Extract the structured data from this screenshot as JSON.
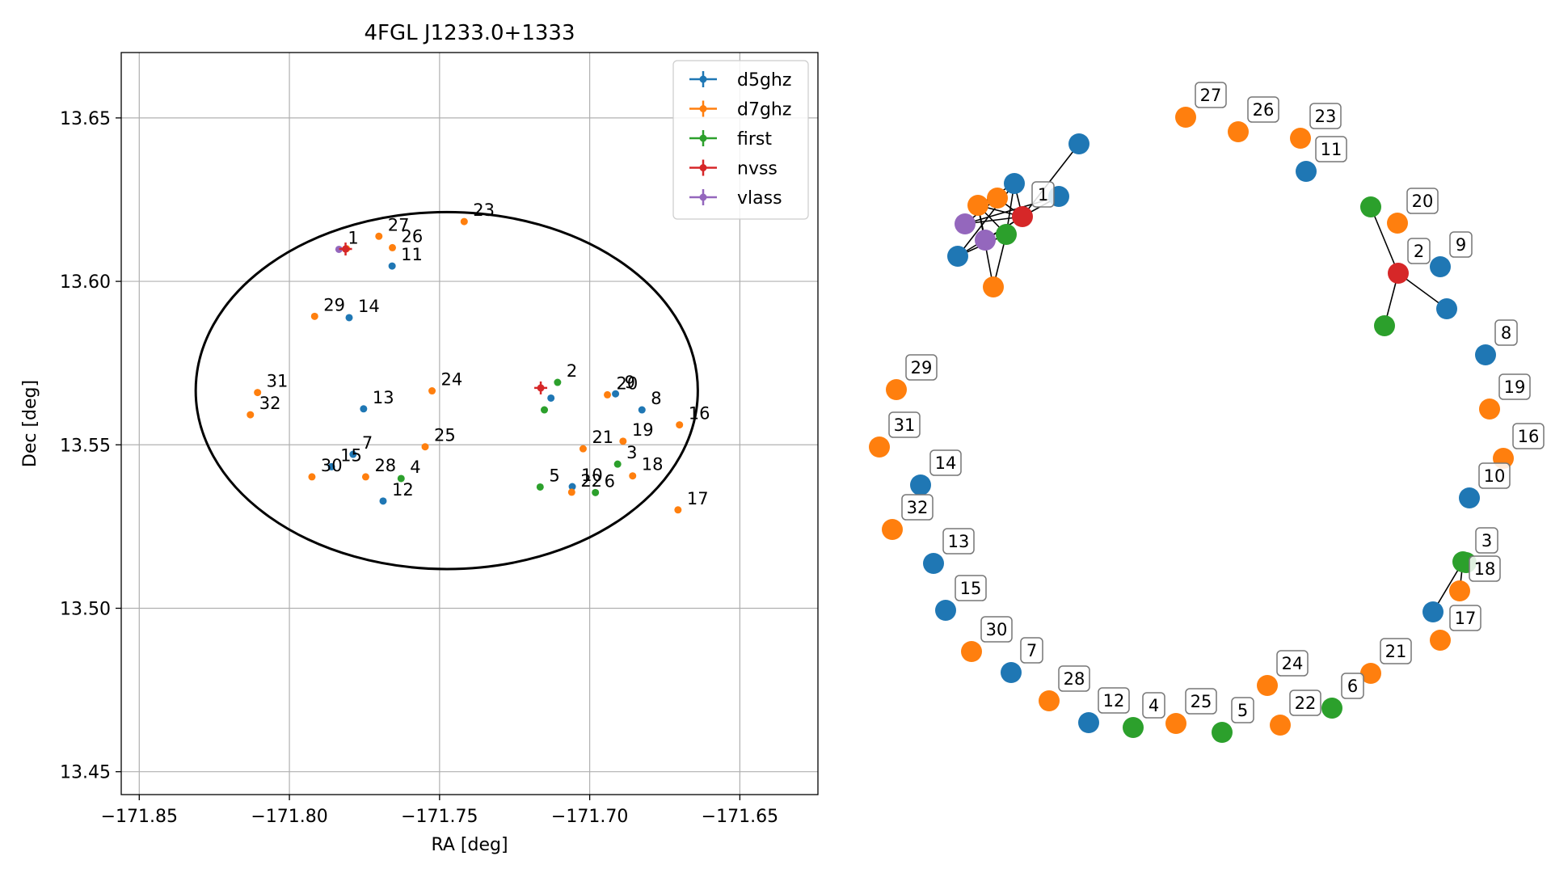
{
  "colors": {
    "d5ghz": "#1f77b4",
    "d7ghz": "#ff7f0e",
    "first": "#2ca02c",
    "nvss": "#d62728",
    "vlass": "#9467bd",
    "ellipse": "#000000",
    "grid": "#b0b0b0"
  },
  "chart_data": [
    {
      "type": "scatter",
      "title": "4FGL J1233.0+1333",
      "xlabel": "RA [deg]",
      "ylabel": "Dec [deg]",
      "xlim": [
        -171.856,
        -171.624
      ],
      "ylim": [
        13.443,
        13.67
      ],
      "xticks": [
        -171.85,
        -171.8,
        -171.75,
        -171.7,
        -171.65
      ],
      "xtick_labels": [
        "−171.85",
        "−171.80",
        "−171.75",
        "−171.70",
        "−171.65"
      ],
      "yticks": [
        13.45,
        13.5,
        13.55,
        13.6,
        13.65
      ],
      "ytick_labels": [
        "13.45",
        "13.50",
        "13.55",
        "13.60",
        "13.65"
      ],
      "grid": true,
      "legend_position": "top-right",
      "legend": [
        "d5ghz",
        "d7ghz",
        "first",
        "nvss",
        "vlass"
      ],
      "ellipse": {
        "center": [
          -171.7476,
          13.5666
        ],
        "semi_axis_ra": 0.0836,
        "semi_axis_dec": 0.0546
      },
      "points": [
        {
          "label": "1",
          "series": "vlass",
          "x": -171.7835,
          "y": 13.6098
        },
        {
          "label": "2",
          "series": "first",
          "x": -171.7107,
          "y": 13.5691
        },
        {
          "label": "3",
          "series": "first",
          "x": -171.6907,
          "y": 13.5441
        },
        {
          "label": "4",
          "series": "first",
          "x": -171.7628,
          "y": 13.5397
        },
        {
          "label": "5",
          "series": "first",
          "x": -171.7165,
          "y": 13.5371
        },
        {
          "label": "6",
          "series": "first",
          "x": -171.6981,
          "y": 13.5354
        },
        {
          "label": "7",
          "series": "d5ghz",
          "x": -171.7788,
          "y": 13.5471
        },
        {
          "label": "8",
          "series": "d5ghz",
          "x": -171.6826,
          "y": 13.5607
        },
        {
          "label": "9",
          "series": "d5ghz",
          "x": -171.6914,
          "y": 13.5656
        },
        {
          "label": "10",
          "series": "d5ghz",
          "x": -171.7058,
          "y": 13.5372
        },
        {
          "label": "11",
          "series": "d5ghz",
          "x": -171.7658,
          "y": 13.6047
        },
        {
          "label": "12",
          "series": "d5ghz",
          "x": -171.7688,
          "y": 13.5328
        },
        {
          "label": "13",
          "series": "d5ghz",
          "x": -171.7753,
          "y": 13.561
        },
        {
          "label": "14",
          "series": "d5ghz",
          "x": -171.7801,
          "y": 13.5889
        },
        {
          "label": "15",
          "series": "d5ghz",
          "x": -171.786,
          "y": 13.5433
        },
        {
          "label": "16",
          "series": "d7ghz",
          "x": -171.6701,
          "y": 13.5561
        },
        {
          "label": "17",
          "series": "d7ghz",
          "x": -171.6706,
          "y": 13.5301
        },
        {
          "label": "18",
          "series": "d7ghz",
          "x": -171.6857,
          "y": 13.5405
        },
        {
          "label": "19",
          "series": "d7ghz",
          "x": -171.6889,
          "y": 13.5511
        },
        {
          "label": "20",
          "series": "d7ghz",
          "x": -171.6941,
          "y": 13.5653
        },
        {
          "label": "21",
          "series": "d7ghz",
          "x": -171.7022,
          "y": 13.5488
        },
        {
          "label": "22",
          "series": "d7ghz",
          "x": -171.706,
          "y": 13.5355
        },
        {
          "label": "23",
          "series": "d7ghz",
          "x": -171.7418,
          "y": 13.6183
        },
        {
          "label": "24",
          "series": "d7ghz",
          "x": -171.7525,
          "y": 13.5665
        },
        {
          "label": "25",
          "series": "d7ghz",
          "x": -171.7548,
          "y": 13.5494
        },
        {
          "label": "26",
          "series": "d7ghz",
          "x": -171.7657,
          "y": 13.6103
        },
        {
          "label": "27",
          "series": "d7ghz",
          "x": -171.7702,
          "y": 13.6138
        },
        {
          "label": "28",
          "series": "d7ghz",
          "x": -171.7746,
          "y": 13.5402
        },
        {
          "label": "29",
          "series": "d7ghz",
          "x": -171.7916,
          "y": 13.5893
        },
        {
          "label": "30",
          "series": "d7ghz",
          "x": -171.7925,
          "y": 13.5402
        },
        {
          "label": "31",
          "series": "d7ghz",
          "x": -171.8106,
          "y": 13.566
        },
        {
          "label": "32",
          "series": "d7ghz",
          "x": -171.813,
          "y": 13.5592
        },
        {
          "label": "",
          "series": "first",
          "x": -171.7151,
          "y": 13.5607
        },
        {
          "label": "",
          "series": "d5ghz",
          "x": -171.7129,
          "y": 13.5643
        },
        {
          "label": "",
          "series": "d7ghz",
          "x": -171.781,
          "y": 13.61
        }
      ],
      "error_points": [
        {
          "series": "nvss",
          "x": -171.7163,
          "y": 13.5674
        },
        {
          "series": "nvss",
          "x": -171.7813,
          "y": 13.6099
        }
      ]
    },
    {
      "type": "network",
      "nodes": [
        {
          "id": "27",
          "series": "d7ghz"
        },
        {
          "id": "26",
          "series": "d7ghz"
        },
        {
          "id": "23",
          "series": "d7ghz"
        },
        {
          "id": "11",
          "series": "d5ghz"
        },
        {
          "id": "20",
          "series": "d7ghz"
        },
        {
          "id": "2",
          "series": "nvss"
        },
        {
          "id": "9",
          "series": "d5ghz"
        },
        {
          "id": "8",
          "series": "d5ghz"
        },
        {
          "id": "19",
          "series": "d7ghz"
        },
        {
          "id": "16",
          "series": "d7ghz"
        },
        {
          "id": "10",
          "series": "d5ghz"
        },
        {
          "id": "3",
          "series": "first"
        },
        {
          "id": "18",
          "series": "d7ghz"
        },
        {
          "id": "17",
          "series": "d7ghz"
        },
        {
          "id": "21",
          "series": "d7ghz"
        },
        {
          "id": "6",
          "series": "first"
        },
        {
          "id": "22",
          "series": "d7ghz"
        },
        {
          "id": "5",
          "series": "first"
        },
        {
          "id": "25",
          "series": "d7ghz"
        },
        {
          "id": "24",
          "series": "d7ghz"
        },
        {
          "id": "4",
          "series": "first"
        },
        {
          "id": "12",
          "series": "d5ghz"
        },
        {
          "id": "28",
          "series": "d7ghz"
        },
        {
          "id": "7",
          "series": "d5ghz"
        },
        {
          "id": "30",
          "series": "d7ghz"
        },
        {
          "id": "15",
          "series": "d5ghz"
        },
        {
          "id": "13",
          "series": "d5ghz"
        },
        {
          "id": "32",
          "series": "d7ghz"
        },
        {
          "id": "14",
          "series": "d5ghz"
        },
        {
          "id": "31",
          "series": "d7ghz"
        },
        {
          "id": "29",
          "series": "d7ghz"
        },
        {
          "id": "1",
          "series": "nvss"
        }
      ]
    }
  ]
}
